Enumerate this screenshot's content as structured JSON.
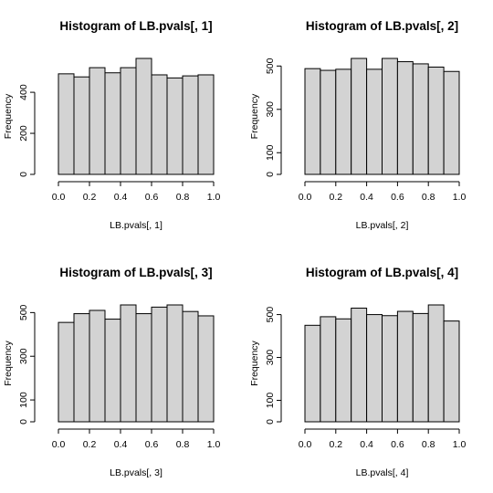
{
  "chart_data": [
    {
      "type": "bar",
      "title": "Histogram of LB.pvals[, 1]",
      "xlabel": "LB.pvals[, 1]",
      "ylabel": "Frequency",
      "bin_edges": [
        0.0,
        0.1,
        0.2,
        0.3,
        0.4,
        0.5,
        0.6,
        0.7,
        0.8,
        0.9,
        1.0
      ],
      "values": [
        490,
        475,
        520,
        495,
        520,
        565,
        485,
        470,
        480,
        485
      ],
      "xticks": [
        "0.0",
        "0.2",
        "0.4",
        "0.6",
        "0.8",
        "1.0"
      ],
      "yticks": [
        0,
        200,
        400
      ],
      "ylim": [
        0,
        565
      ]
    },
    {
      "type": "bar",
      "title": "Histogram of LB.pvals[, 2]",
      "xlabel": "LB.pvals[, 2]",
      "ylabel": "Frequency",
      "bin_edges": [
        0.0,
        0.1,
        0.2,
        0.3,
        0.4,
        0.5,
        0.6,
        0.7,
        0.8,
        0.9,
        1.0
      ],
      "values": [
        488,
        480,
        485,
        535,
        485,
        535,
        520,
        510,
        495,
        475
      ],
      "xticks": [
        "0.0",
        "0.2",
        "0.4",
        "0.6",
        "0.8",
        "1.0"
      ],
      "yticks": [
        0,
        100,
        300,
        500
      ],
      "ylim": [
        0,
        535
      ]
    },
    {
      "type": "bar",
      "title": "Histogram of LB.pvals[, 3]",
      "xlabel": "LB.pvals[, 3]",
      "ylabel": "Frequency",
      "bin_edges": [
        0.0,
        0.1,
        0.2,
        0.3,
        0.4,
        0.5,
        0.6,
        0.7,
        0.8,
        0.9,
        1.0
      ],
      "values": [
        455,
        495,
        510,
        470,
        535,
        495,
        525,
        535,
        505,
        485
      ],
      "xticks": [
        "0.0",
        "0.2",
        "0.4",
        "0.6",
        "0.8",
        "1.0"
      ],
      "yticks": [
        0,
        100,
        300,
        500
      ],
      "ylim": [
        0,
        535
      ]
    },
    {
      "type": "bar",
      "title": "Histogram of LB.pvals[, 4]",
      "xlabel": "LB.pvals[, 4]",
      "ylabel": "Frequency",
      "bin_edges": [
        0.0,
        0.1,
        0.2,
        0.3,
        0.4,
        0.5,
        0.6,
        0.7,
        0.8,
        0.9,
        1.0
      ],
      "values": [
        450,
        490,
        480,
        530,
        500,
        495,
        515,
        505,
        545,
        470
      ],
      "xticks": [
        "0.0",
        "0.2",
        "0.4",
        "0.6",
        "0.8",
        "1.0"
      ],
      "yticks": [
        0,
        100,
        300,
        500
      ],
      "ylim": [
        0,
        545
      ]
    }
  ],
  "colors": {
    "bar_fill": "#d3d3d3",
    "bar_stroke": "#000000",
    "background": "#ffffff"
  }
}
